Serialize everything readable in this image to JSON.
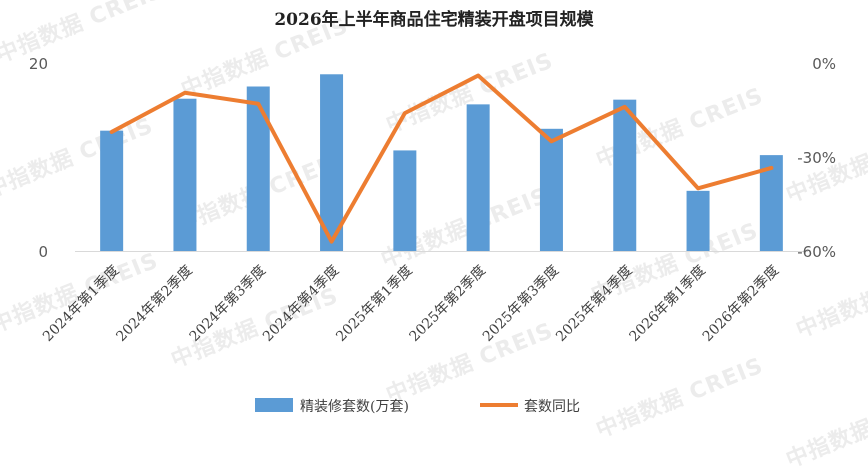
{
  "watermark": "中指数据 CREIS",
  "chart_data": {
    "type": "bar",
    "title": "2026年上半年商品住宅精装开盘项目规模",
    "categories": [
      "2024年第1季度",
      "2024年第2季度",
      "2024年第3季度",
      "2024年第4季度",
      "2025年第1季度",
      "2025年第2季度",
      "2025年第3季度",
      "2025年第4季度",
      "2026年第1季度",
      "2026年第2季度"
    ],
    "y_left": {
      "range": [
        0,
        20
      ],
      "ticks": [
        "0",
        "20"
      ]
    },
    "y_right": {
      "range": [
        -60,
        0
      ],
      "ticks": [
        "-60%",
        "-30%",
        "0%"
      ]
    },
    "series": [
      {
        "name": "精装修套数(万套)",
        "type": "bar",
        "axis": "left",
        "color": "#5b9bd5",
        "values": [
          12.8,
          16.2,
          17.5,
          18.8,
          10.7,
          15.6,
          13.0,
          16.1,
          6.4,
          10.2
        ]
      },
      {
        "name": "套数同比",
        "type": "line",
        "axis": "right",
        "color": "#ed7d31",
        "values": [
          -22.0,
          -9.5,
          -13.0,
          -57.0,
          -16.0,
          -4.0,
          -25.0,
          -14.0,
          -40.0,
          -33.5
        ]
      }
    ],
    "legend_position": "bottom",
    "grid": false
  }
}
